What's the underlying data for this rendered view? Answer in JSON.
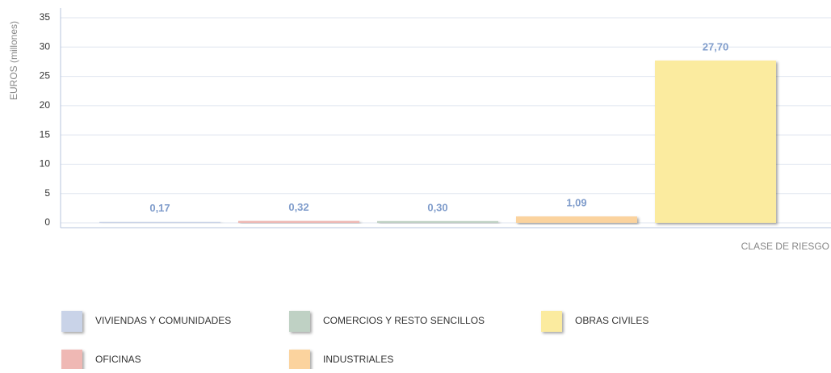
{
  "chart_data": {
    "type": "bar",
    "categories": [
      "VIVIENDAS Y COMUNIDADES",
      "OFICINAS",
      "COMERCIOS Y RESTO SENCILLOS",
      "INDUSTRIALES",
      "OBRAS CIVILES"
    ],
    "values": [
      0.17,
      0.32,
      0.3,
      1.09,
      27.7
    ],
    "value_labels": [
      "0,17",
      "0,32",
      "0,30",
      "1,09",
      "27,70"
    ],
    "colors": [
      "#c9d3e8",
      "#efb8b4",
      "#bfd1c4",
      "#fbd39e",
      "#fbeb9f"
    ],
    "y_label": "EUROS (millones)",
    "x_label": "CLASE DE RIESGO",
    "ylim": [
      0,
      35
    ],
    "yticks": [
      0,
      5,
      10,
      15,
      20,
      25,
      30,
      35
    ],
    "grid": true
  }
}
